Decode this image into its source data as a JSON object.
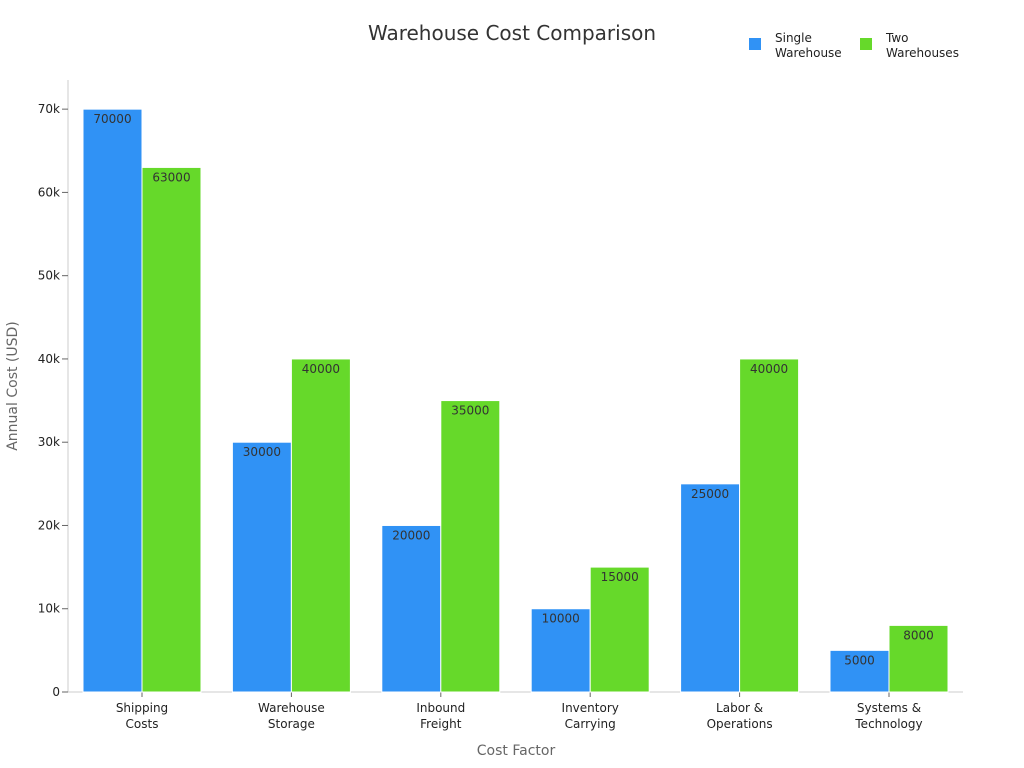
{
  "chart_data": {
    "type": "bar",
    "title": "Warehouse Cost Comparison",
    "xlabel": "Cost Factor",
    "ylabel": "Annual Cost (USD)",
    "categories": [
      [
        "Shipping",
        "Costs"
      ],
      [
        "Warehouse",
        "Storage"
      ],
      [
        "Inbound",
        "Freight"
      ],
      [
        "Inventory",
        "Carrying"
      ],
      [
        "Labor &",
        "Operations"
      ],
      [
        "Systems &",
        "Technology"
      ]
    ],
    "series": [
      {
        "name": [
          "Single",
          "Warehouse"
        ],
        "color": "#3092F5",
        "values": [
          70000,
          30000,
          20000,
          10000,
          25000,
          5000
        ]
      },
      {
        "name": [
          "Two",
          "Warehouses"
        ],
        "color": "#66D92A",
        "values": [
          63000,
          40000,
          35000,
          15000,
          40000,
          8000
        ]
      }
    ],
    "ylim": [
      0,
      73500
    ],
    "yticks": [
      0,
      10000,
      20000,
      30000,
      40000,
      50000,
      60000,
      70000
    ],
    "ytick_labels": [
      "0",
      "10k",
      "20k",
      "30k",
      "40k",
      "50k",
      "60k",
      "70k"
    ],
    "grid": false,
    "legend_position": "top-right",
    "data_labels": true
  }
}
